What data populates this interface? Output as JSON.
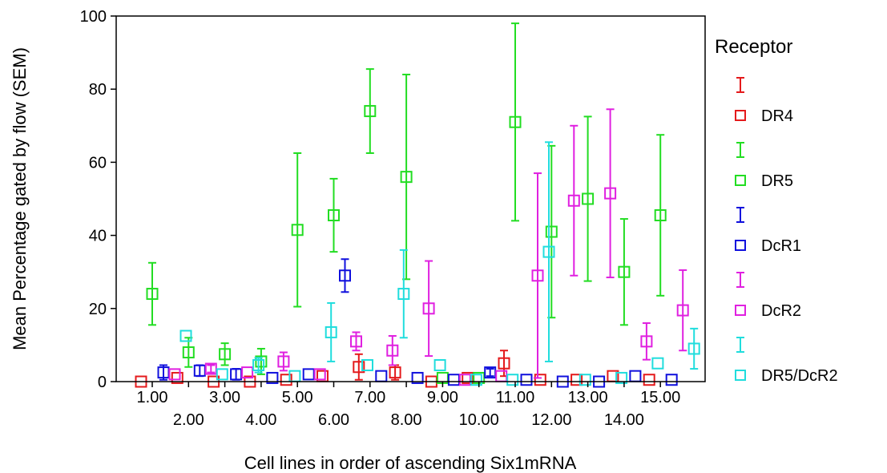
{
  "chart_data": {
    "type": "scatter",
    "xlabel": "Cell lines in order of ascending Six1mRNA",
    "ylabel": "Mean Percentage gated by flow (SEM)",
    "ylim": [
      0,
      100
    ],
    "yticks": [
      0,
      20,
      40,
      60,
      80,
      100
    ],
    "categories": [
      "1.00",
      "2.00",
      "3.00",
      "4.00",
      "5.00",
      "6.00",
      "7.00",
      "8.00",
      "9.00",
      "10.00",
      "11.00",
      "12.00",
      "13.00",
      "14.00",
      "15.00"
    ],
    "legend": {
      "title": "Receptor",
      "placement": "right"
    },
    "grid": false,
    "series": [
      {
        "name": "DR4",
        "color": "#e41a1c",
        "values": [
          0,
          1,
          0,
          0,
          0.5,
          1.5,
          4,
          2.5,
          0,
          1,
          5,
          0.5,
          0.5,
          1.5,
          0.5
        ],
        "err": [
          0,
          0,
          0,
          0,
          0,
          0,
          3.5,
          2,
          0,
          0,
          3.5,
          0,
          0,
          0,
          0
        ]
      },
      {
        "name": "DR5",
        "color": "#22dd22",
        "values": [
          24,
          8,
          7.5,
          5.5,
          41.5,
          45.5,
          74,
          56,
          1,
          1,
          71,
          41,
          50,
          30,
          45.5
        ],
        "err": [
          8.5,
          4,
          3,
          3.5,
          21,
          10,
          11.5,
          28,
          0,
          0,
          27,
          23.5,
          22.5,
          14.5,
          22
        ]
      },
      {
        "name": "DcR1",
        "color": "#1010dd",
        "values": [
          2.5,
          3,
          2,
          1,
          2,
          29,
          1.5,
          1,
          0.5,
          2.5,
          0.5,
          0,
          0,
          1.5,
          0.5
        ],
        "err": [
          2,
          1.5,
          1.5,
          0,
          0,
          4.5,
          0,
          0,
          0,
          1,
          0,
          0,
          0,
          0,
          0
        ]
      },
      {
        "name": "DcR2",
        "color": "#e020e0",
        "values": [
          2,
          3.5,
          2.5,
          5.5,
          2,
          11,
          8.5,
          20,
          0.5,
          1.5,
          29,
          49.5,
          51.5,
          11,
          19.5
        ],
        "err": [
          0,
          1,
          0,
          2.5,
          0,
          2.5,
          4,
          13,
          0,
          0,
          28,
          20.5,
          23,
          5,
          11
        ]
      },
      {
        "name": "DR5/DcR2",
        "color": "#20dddd",
        "values": [
          12.5,
          2,
          4.5,
          1.5,
          13.5,
          4.5,
          24,
          4.5,
          0.5,
          0.5,
          35.5,
          0.5,
          1,
          5,
          9
        ],
        "err": [
          0,
          0,
          2,
          0,
          8,
          0,
          12,
          0,
          0,
          0,
          30,
          0,
          0,
          0,
          5.5
        ]
      }
    ]
  }
}
